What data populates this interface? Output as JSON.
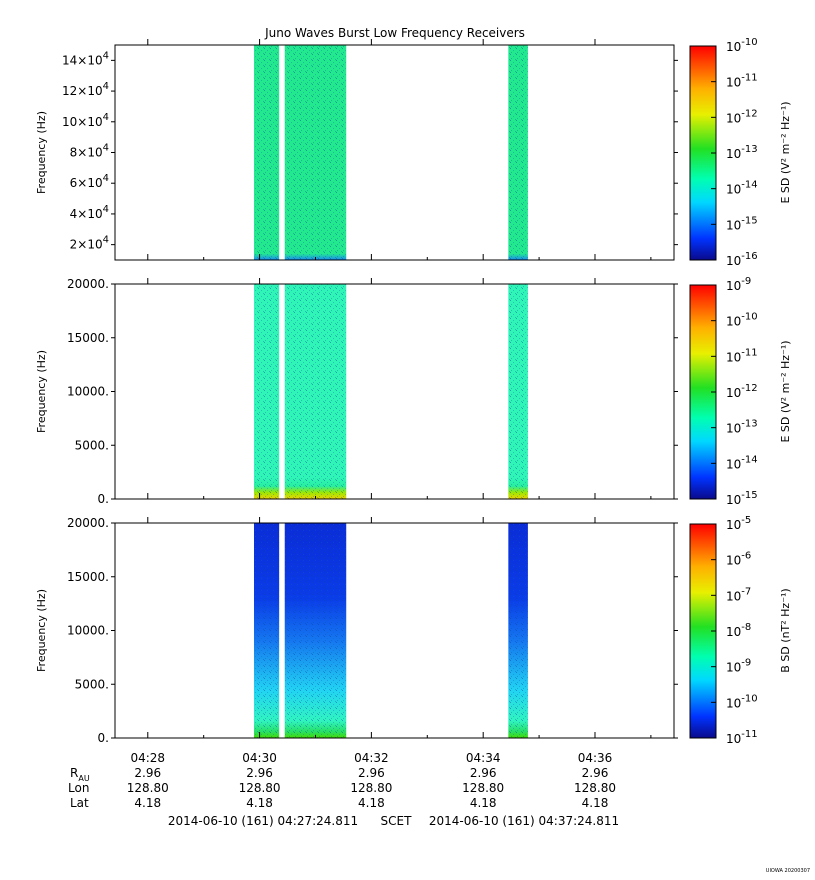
{
  "title": "Juno Waves Burst Low Frequency Receivers",
  "stamp": "UIOWA 20200307",
  "chart_data": [
    {
      "type": "heatmap",
      "panel": "top",
      "ylabel": "Frequency (Hz)",
      "y_ticks": [
        "2×10^4",
        "4×10^4",
        "6×10^4",
        "8×10^4",
        "10×10^4",
        "12×10^4",
        "14×10^4"
      ],
      "ylim": [
        10000,
        150000
      ],
      "colorbar_label": "E SD (V² m⁻² Hz⁻¹)",
      "colorbar_ticks": [
        "10^-16",
        "10^-15",
        "10^-14",
        "10^-13",
        "10^-12",
        "10^-11",
        "10^-10"
      ],
      "data_intervals_min": [
        [
          29.9,
          30.35
        ],
        [
          30.45,
          31.55
        ],
        [
          34.45,
          34.8
        ]
      ],
      "dominant_level": "10^-13.5"
    },
    {
      "type": "heatmap",
      "panel": "middle",
      "ylabel": "Frequency (Hz)",
      "y_ticks": [
        "0.",
        "5000.",
        "10000.",
        "15000.",
        "20000."
      ],
      "ylim": [
        0,
        20000
      ],
      "colorbar_label": "E SD (V² m⁻² Hz⁻¹)",
      "colorbar_ticks": [
        "10^-15",
        "10^-14",
        "10^-13",
        "10^-12",
        "10^-11",
        "10^-10",
        "10^-9"
      ],
      "data_intervals_min": [
        [
          29.9,
          30.35
        ],
        [
          30.45,
          31.55
        ],
        [
          34.45,
          34.8
        ]
      ],
      "dominant_level": "10^-13"
    },
    {
      "type": "heatmap",
      "panel": "bottom",
      "ylabel": "Frequency (Hz)",
      "y_ticks": [
        "0.",
        "5000.",
        "10000.",
        "15000.",
        "20000."
      ],
      "ylim": [
        0,
        20000
      ],
      "colorbar_label": "B SD (nT² Hz⁻¹)",
      "colorbar_ticks": [
        "10^-11",
        "10^-10",
        "10^-9",
        "10^-8",
        "10^-7",
        "10^-6",
        "10^-5"
      ],
      "data_intervals_min": [
        [
          29.9,
          30.35
        ],
        [
          30.45,
          31.55
        ],
        [
          34.45,
          34.8
        ]
      ],
      "dominant_level": "10^-10.5"
    }
  ],
  "x_axis": {
    "tick_labels": [
      "04:28",
      "04:30",
      "04:32",
      "04:34",
      "04:36"
    ],
    "row_labels": [
      "R_AU",
      "Lon",
      "Lat"
    ],
    "rows": {
      "rau": [
        "2.96",
        "2.96",
        "2.96",
        "2.96",
        "2.96"
      ],
      "lon": [
        "128.80",
        "128.80",
        "128.80",
        "128.80",
        "128.80"
      ],
      "lat": [
        "4.18",
        "4.18",
        "4.18",
        "4.18",
        "4.18"
      ]
    },
    "time_start": "2014-06-10 (161) 04:27:24.811",
    "scet_label": "SCET",
    "time_end": "2014-06-10 (161) 04:37:24.811"
  }
}
